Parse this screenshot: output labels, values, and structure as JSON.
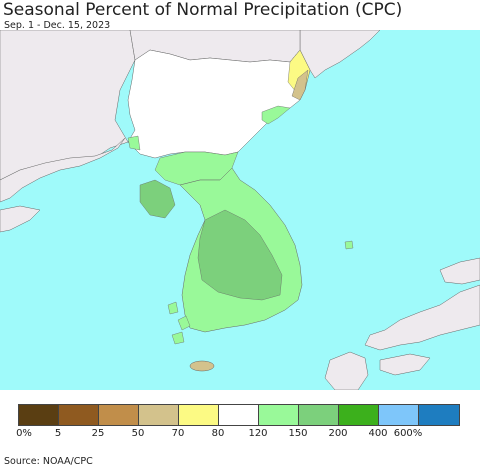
{
  "title": "Seasonal Percent of Normal Precipitation (CPC)",
  "subtitle": "Sep. 1 - Dec. 15, 2023",
  "source": "Source: NOAA/CPC",
  "colors": {
    "ocean": "#9ffafa",
    "foreign_land": "#eeeaee",
    "p80_120": "#ffffff",
    "p120_150": "#99f999",
    "p150_200": "#7cd07c",
    "p70_80": "#fcfa84",
    "p50_70": "#d3c28c",
    "border": "#555555"
  },
  "legend": {
    "colors": [
      "#5a3e12",
      "#8f5a20",
      "#c18e4a",
      "#d3c28c",
      "#fcfa84",
      "#ffffff",
      "#99f999",
      "#7cd07c",
      "#3cb01c",
      "#7ec6fa",
      "#1e7dc0"
    ],
    "ticks": [
      "0%",
      "5",
      "25",
      "50",
      "70",
      "80",
      "120",
      "150",
      "200",
      "400",
      "600%"
    ]
  }
}
